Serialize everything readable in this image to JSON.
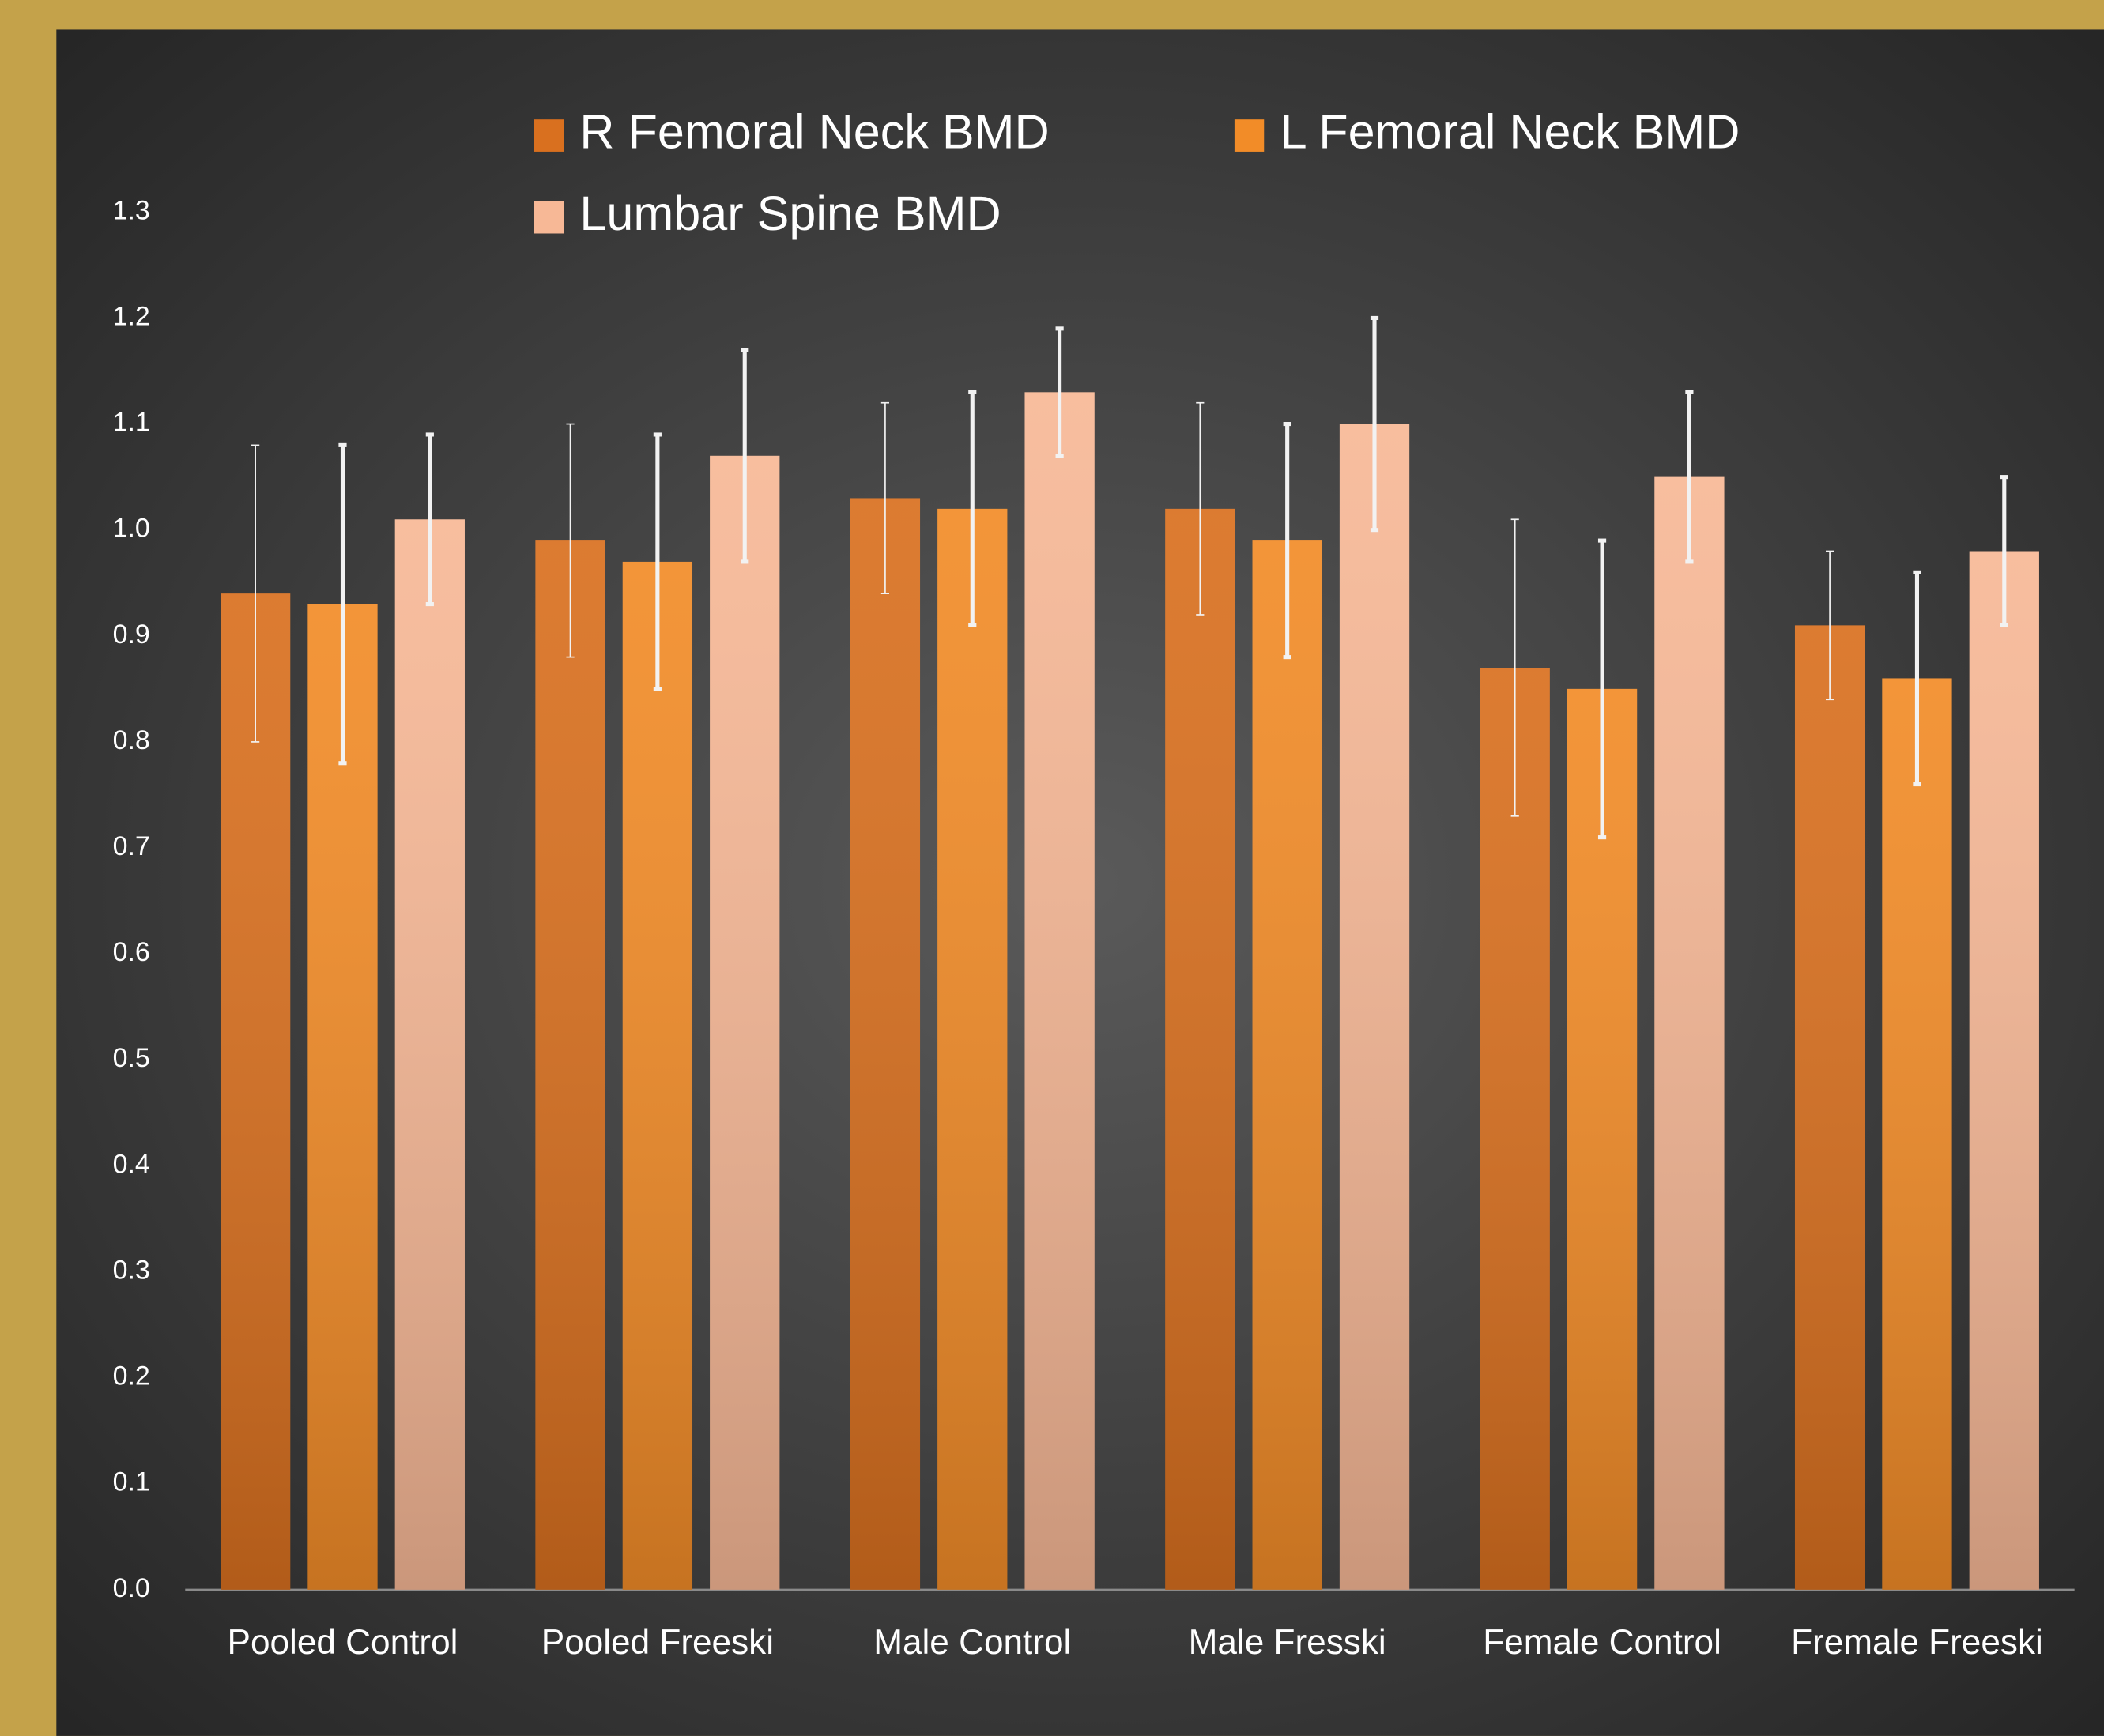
{
  "chart_data": {
    "type": "bar",
    "categories": [
      "Pooled Control",
      "Pooled Freeski",
      "Male Control",
      "Male Fresski",
      "Female Control",
      "Fremale Freeski"
    ],
    "series": [
      {
        "name": "R Femoral Neck BMD",
        "color": "#d9701f",
        "values": [
          0.94,
          0.99,
          1.03,
          1.02,
          0.87,
          0.91
        ],
        "errors": [
          0.14,
          0.11,
          0.09,
          0.1,
          0.14,
          0.07
        ]
      },
      {
        "name": "L Femoral Neck BMD",
        "color": "#f28c28",
        "values": [
          0.93,
          0.97,
          1.02,
          0.99,
          0.85,
          0.86
        ],
        "errors": [
          0.15,
          0.12,
          0.11,
          0.11,
          0.14,
          0.1
        ]
      },
      {
        "name": "Lumbar Spine BMD",
        "color": "#f7b896",
        "values": [
          1.01,
          1.07,
          1.13,
          1.1,
          1.05,
          0.98
        ],
        "errors": [
          0.08,
          0.1,
          0.06,
          0.1,
          0.08,
          0.07
        ]
      }
    ],
    "ylim": [
      0,
      1.3
    ],
    "yticks": [
      {
        "value": 0,
        "label": "0.0"
      },
      0.1,
      0.2,
      0.3,
      0.4,
      0.5,
      0.6,
      0.7,
      0.8,
      0.9,
      {
        "value": 1,
        "label": "1.0"
      },
      1.1,
      1.2,
      1.3
    ],
    "legend": "top"
  }
}
